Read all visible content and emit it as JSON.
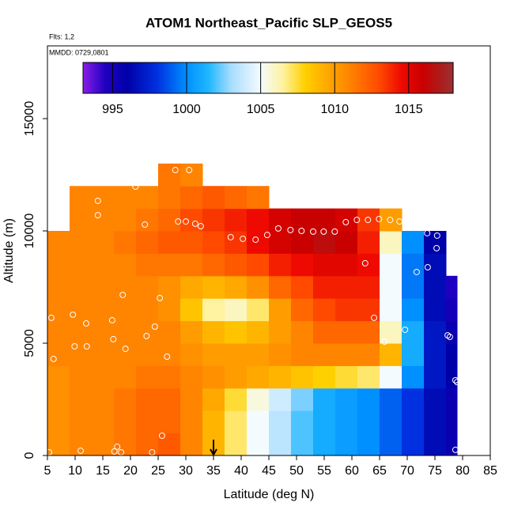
{
  "chart_data": {
    "type": "heatmap",
    "title": "ATOM1 Northeast_Pacific SLP_GEOS5",
    "annotations": [
      "Flts: 1,2",
      "MMDD: 0729,0801"
    ],
    "x_label": "Latitude (deg N)",
    "y_label": "Altitude (m)",
    "xlim": [
      5,
      85
    ],
    "xticks": [
      5,
      10,
      15,
      20,
      25,
      30,
      35,
      40,
      45,
      50,
      55,
      60,
      65,
      70,
      75,
      80,
      85
    ],
    "ylim": [
      0,
      18240
    ],
    "yticks": [
      0,
      5000,
      10000,
      15000
    ],
    "clim": [
      993,
      1018
    ],
    "cticks": [
      995,
      1000,
      1005,
      1010,
      1015
    ],
    "colorscale": [
      {
        "value": 993,
        "color": "#8a1ee8"
      },
      {
        "value": 994.5,
        "color": "#2000c0"
      },
      {
        "value": 996,
        "color": "#0000a8"
      },
      {
        "value": 998,
        "color": "#0030e0"
      },
      {
        "value": 1000,
        "color": "#0090ff"
      },
      {
        "value": 1001.5,
        "color": "#20b8ff"
      },
      {
        "value": 1003,
        "color": "#a8dcff"
      },
      {
        "value": 1005,
        "color": "#f4fbff"
      },
      {
        "value": 1006.5,
        "color": "#fff2a0"
      },
      {
        "value": 1008,
        "color": "#ffd000"
      },
      {
        "value": 1009.5,
        "color": "#ffa800"
      },
      {
        "value": 1011,
        "color": "#ff8400"
      },
      {
        "value": 1013,
        "color": "#ff4a00"
      },
      {
        "value": 1014.5,
        "color": "#ee0a00"
      },
      {
        "value": 1016,
        "color": "#c80000"
      },
      {
        "value": 1018,
        "color": "#9a3030"
      }
    ],
    "xbins": [
      5,
      9,
      13,
      17,
      21,
      25,
      29,
      33,
      37,
      41,
      45,
      49,
      53,
      57,
      61,
      65,
      69,
      73,
      77,
      79
    ],
    "ybins": [
      0,
      1000,
      2000,
      3000,
      4000,
      5000,
      6000,
      7000,
      8000,
      9000,
      10000,
      11000,
      12000,
      13000
    ],
    "z": [
      [
        1010.5,
        1011,
        1011,
        1011.5,
        1012,
        1012.5,
        1011,
        1009,
        1007,
        1005,
        1003.5,
        1002,
        1001,
        1000.5,
        1000,
        999,
        998,
        996.5,
        995.5
      ],
      [
        1010.5,
        1011,
        1011,
        1011.5,
        1012,
        1012,
        1011,
        1009,
        1007,
        1005,
        1003.5,
        1002,
        1001,
        1000.5,
        1000,
        999,
        998,
        996.5,
        995.5
      ],
      [
        1010.5,
        1011,
        1011,
        1011.5,
        1012,
        1012,
        1011,
        1009.5,
        1007.5,
        1005.5,
        1004,
        1002.5,
        1001,
        1000.5,
        1000,
        999,
        998,
        996.5,
        995.5
      ],
      [
        1010.5,
        1011,
        1011,
        1011,
        1011.5,
        1011.5,
        1011,
        1010.5,
        1010,
        1009.5,
        1009,
        1008.5,
        1008,
        1007.5,
        1007,
        1005,
        1000,
        997,
        996
      ],
      [
        1011,
        1011,
        1011,
        1011,
        1011,
        1011,
        1010.5,
        1010,
        1010,
        1010,
        1010.5,
        1011,
        1011,
        1011,
        1011,
        1009,
        1001,
        997,
        996
      ],
      [
        1011,
        1011,
        1011,
        1011,
        1011,
        1011,
        1010,
        1009,
        1008.5,
        1009,
        1010,
        1011,
        1012,
        1012,
        1012,
        1006,
        1001,
        997,
        995.5
      ],
      [
        1011,
        1011,
        1011,
        1011,
        1011,
        1010.5,
        1008.5,
        1006.5,
        1006,
        1007,
        1010,
        1012,
        1013,
        1013.5,
        1013.5,
        1005,
        1000,
        996.5,
        995
      ],
      [
        1011,
        1011,
        1011,
        1011,
        1011,
        1010.5,
        1009.5,
        1009,
        1009.5,
        1010.5,
        1012,
        1013,
        1014,
        1014,
        1014,
        1005,
        999.5,
        996.5,
        994.5
      ],
      [
        1011,
        1011,
        1011,
        1011,
        1011.5,
        1011.5,
        1011.5,
        1012,
        1012.5,
        1013,
        1014,
        1014.5,
        1015,
        1015,
        1014.5,
        1005,
        999.5,
        996.5,
        null
      ],
      [
        1011,
        1011,
        1011,
        1011.5,
        1012,
        1012.5,
        1012.5,
        1013,
        1013.5,
        1014.5,
        1015.5,
        1016,
        1016.5,
        1016,
        1014,
        1006,
        1000,
        996,
        null
      ],
      [
        null,
        1011,
        1011,
        1011,
        1011.5,
        1012,
        1013,
        1013.5,
        1014,
        1014.5,
        1015.5,
        1016,
        1016,
        1015.5,
        1013.5,
        1010,
        null,
        null,
        null
      ],
      [
        null,
        1011,
        1011,
        1011,
        1011,
        1011.5,
        1012,
        1012.5,
        1012,
        1011.5,
        null,
        null,
        null,
        null,
        null,
        null,
        null,
        null,
        null
      ],
      [
        null,
        null,
        null,
        null,
        null,
        1011.5,
        1011,
        null,
        null,
        null,
        null,
        null,
        null,
        null,
        null,
        null,
        null,
        null,
        null
      ]
    ],
    "points": {
      "x": [
        7.9,
        7.7,
        5.7,
        9.6,
        6.1,
        9.9,
        12.1,
        12,
        14.1,
        14.1,
        16.7,
        18.6,
        19.1,
        16.9,
        22.9,
        24.4,
        25.3,
        26.6,
        25.7,
        20.9,
        22.6,
        28.1,
        30.6,
        28.6,
        30,
        31.7,
        32.7,
        38.1,
        40.3,
        42.6,
        44.7,
        46.7,
        48.9,
        50.9,
        53,
        54.9,
        56.9,
        58.9,
        60.9,
        62.9,
        64.9,
        66.9,
        68.6,
        70,
        62.4,
        64,
        65.9,
        69.6,
        71.7,
        73.7,
        73.6,
        75.4,
        75.3,
        77.3,
        77.7,
        78.7,
        79,
        78.7,
        5.3,
        11,
        17.6,
        17.1,
        18.3,
        23.9
      ],
      "y": [
        11340,
        10600,
        6130,
        6270,
        4300,
        4860,
        4860,
        5880,
        11340,
        10700,
        6020,
        7150,
        4750,
        5180,
        5320,
        5740,
        7010,
        4400,
        880,
        11970,
        10280,
        12710,
        12710,
        10420,
        10420,
        10320,
        10210,
        9720,
        9650,
        9610,
        9820,
        10110,
        10040,
        10000,
        9970,
        9970,
        9970,
        10390,
        10490,
        10490,
        10530,
        10490,
        10420,
        10320,
        8560,
        6130,
        5070,
        5600,
        8170,
        8380,
        9900,
        9790,
        9230,
        5350,
        5280,
        3350,
        3270,
        250,
        140,
        210,
        390,
        180,
        140,
        140
      ]
    },
    "marker_lat": 35
  }
}
